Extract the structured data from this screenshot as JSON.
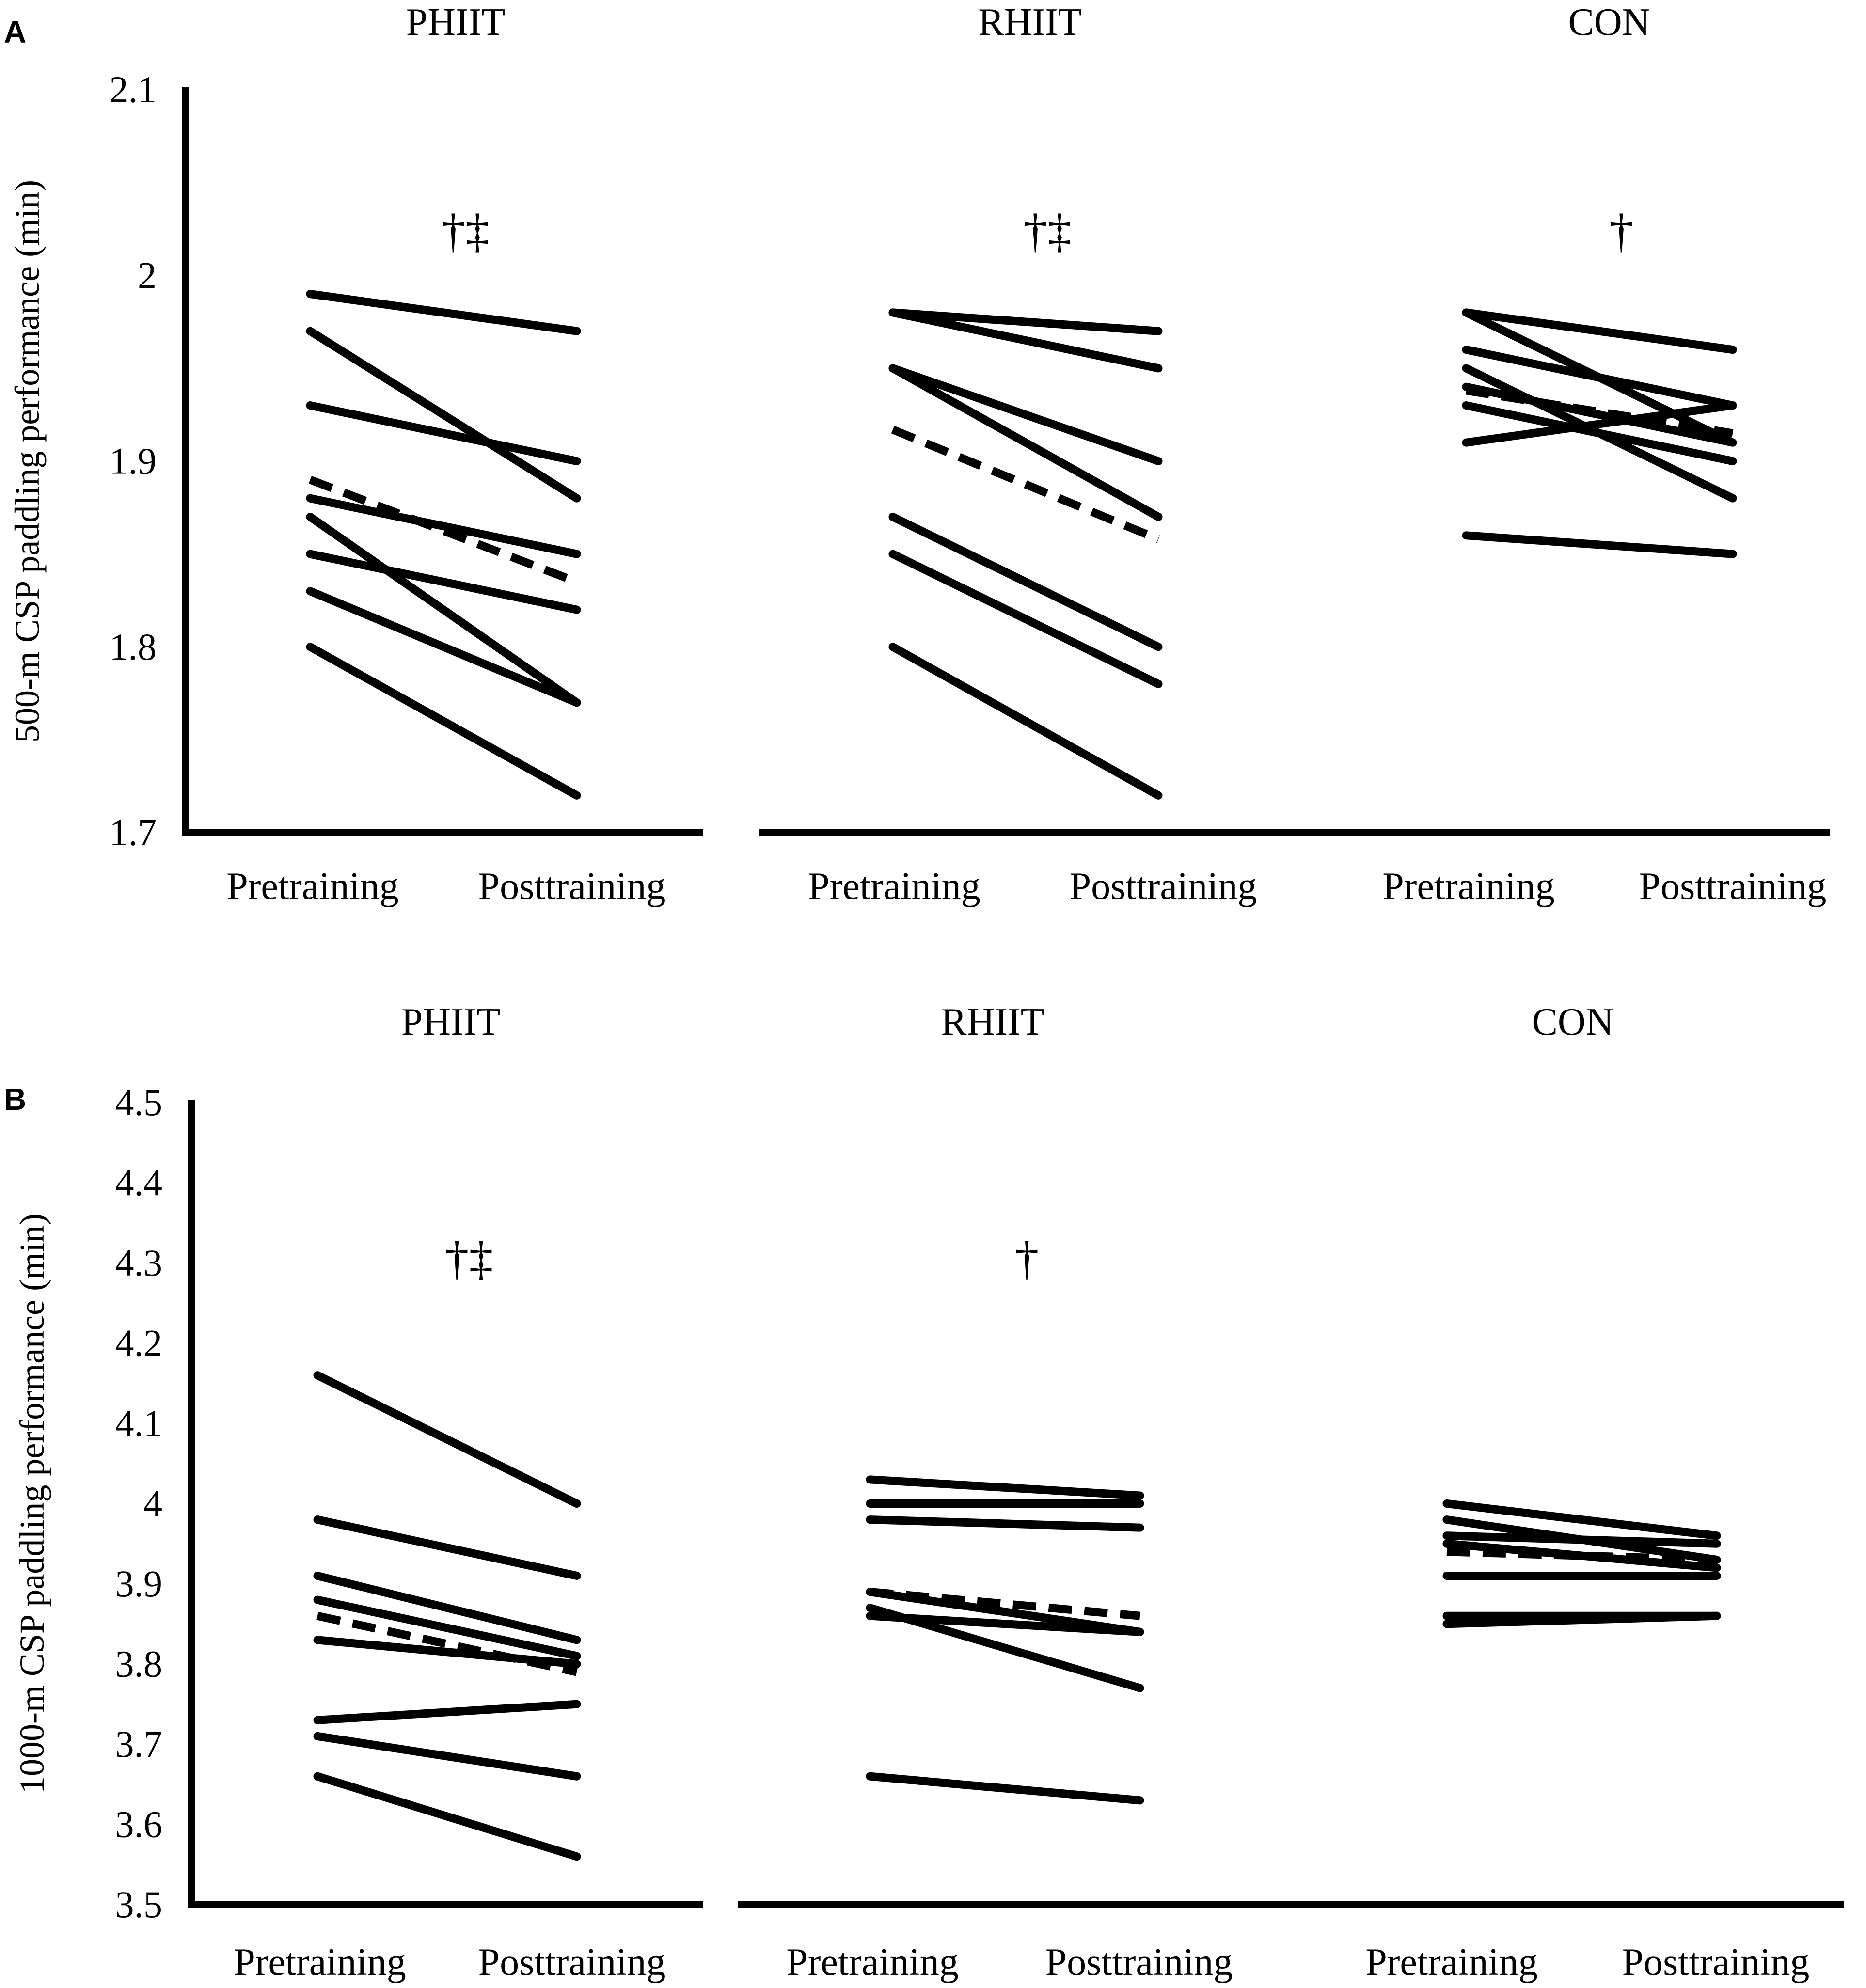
{
  "chart_data": [
    {
      "type": "line",
      "panel_label": "A",
      "ylabel": "500-m CSP paddling performance (min)",
      "ylim": [
        1.7,
        2.1
      ],
      "yticks": [
        1.7,
        1.8,
        1.9,
        2,
        2.1
      ],
      "ytick_labels": [
        "1.7",
        "1.8",
        "1.9",
        "2",
        "2.1"
      ],
      "categories": [
        "Pretraining",
        "Posttraining"
      ],
      "groups": [
        {
          "title": "PHIIT",
          "annotation": "†‡",
          "individuals": [
            [
              1.99,
              1.97
            ],
            [
              1.97,
              1.88
            ],
            [
              1.93,
              1.9
            ],
            [
              1.88,
              1.85
            ],
            [
              1.87,
              1.77
            ],
            [
              1.85,
              1.82
            ],
            [
              1.83,
              1.77
            ],
            [
              1.8,
              1.72
            ]
          ],
          "mean": [
            1.89,
            1.835
          ]
        },
        {
          "title": "RHIIT",
          "annotation": "†‡",
          "individuals": [
            [
              1.98,
              1.97
            ],
            [
              1.98,
              1.95
            ],
            [
              1.95,
              1.9
            ],
            [
              1.95,
              1.87
            ],
            [
              1.87,
              1.8
            ],
            [
              1.85,
              1.78
            ],
            [
              1.8,
              1.72
            ]
          ],
          "mean": [
            1.917,
            1.858
          ]
        },
        {
          "title": "CON",
          "annotation": "†",
          "individuals": [
            [
              1.98,
              1.96
            ],
            [
              1.98,
              1.91
            ],
            [
              1.96,
              1.93
            ],
            [
              1.95,
              1.88
            ],
            [
              1.94,
              1.91
            ],
            [
              1.93,
              1.9
            ],
            [
              1.91,
              1.93
            ],
            [
              1.86,
              1.85
            ]
          ],
          "mean": [
            1.938,
            1.915
          ]
        }
      ]
    },
    {
      "type": "line",
      "panel_label": "B",
      "ylabel": "1000-m CSP paddling performance (min)",
      "ylim": [
        3.5,
        4.5
      ],
      "yticks": [
        3.5,
        3.6,
        3.7,
        3.8,
        3.9,
        4,
        4.1,
        4.2,
        4.3,
        4.4,
        4.5
      ],
      "ytick_labels": [
        "3.5",
        "3.6",
        "3.7",
        "3.8",
        "3.9",
        "4",
        "4.1",
        "4.2",
        "4.3",
        "4.4",
        "4.5"
      ],
      "categories": [
        "Pretraining",
        "Posttraining"
      ],
      "groups": [
        {
          "title": "PHIIT",
          "annotation": "†‡",
          "individuals": [
            [
              4.16,
              4.0
            ],
            [
              3.98,
              3.91
            ],
            [
              3.91,
              3.83
            ],
            [
              3.88,
              3.81
            ],
            [
              3.83,
              3.8
            ],
            [
              3.73,
              3.75
            ],
            [
              3.71,
              3.66
            ],
            [
              3.66,
              3.56
            ]
          ],
          "mean": [
            3.86,
            3.79
          ]
        },
        {
          "title": "RHIIT",
          "annotation": "†",
          "individuals": [
            [
              4.03,
              4.01
            ],
            [
              4.0,
              4.0
            ],
            [
              3.98,
              3.97
            ],
            [
              3.89,
              3.84
            ],
            [
              3.87,
              3.77
            ],
            [
              3.86,
              3.84
            ],
            [
              3.66,
              3.63
            ]
          ],
          "mean": [
            3.89,
            3.86
          ]
        },
        {
          "title": "CON",
          "annotation": "",
          "individuals": [
            [
              4.0,
              3.96
            ],
            [
              3.98,
              3.93
            ],
            [
              3.96,
              3.95
            ],
            [
              3.95,
              3.92
            ],
            [
              3.91,
              3.91
            ],
            [
              3.86,
              3.86
            ],
            [
              3.85,
              3.86
            ]
          ],
          "mean": [
            3.94,
            3.93
          ]
        }
      ]
    }
  ]
}
